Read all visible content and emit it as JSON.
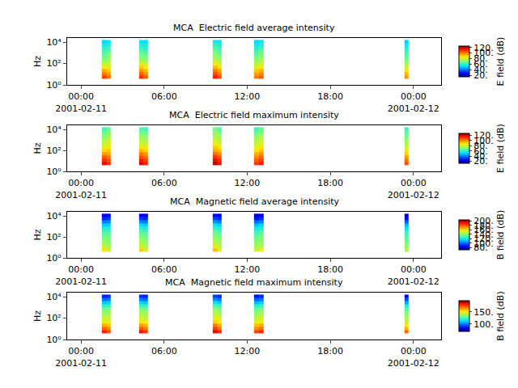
{
  "chart_data": [
    {
      "type": "heatmap",
      "title": "MCA  Electric field average intensity",
      "ylabel": "Hz",
      "log": "y",
      "x": [
        "2001-02-11 01:30",
        "2001-02-11 01:50",
        "2001-02-11 02:10",
        "2001-02-11 04:10",
        "2001-02-11 04:30",
        "2001-02-11 04:50",
        "2001-02-11 09:30",
        "2001-02-11 09:50",
        "2001-02-11 10:10",
        "2001-02-11 12:30",
        "2001-02-11 12:50",
        "2001-02-11 13:10",
        "2001-02-11 23:20",
        "2001-02-11 23:30",
        "2001-02-11 23:40"
      ],
      "y": [
        4,
        8,
        16,
        32,
        64,
        128,
        256,
        512,
        1024,
        2048,
        4096,
        8192,
        16384
      ],
      "z": [
        [
          108,
          102,
          null,
          110,
          104,
          null,
          112,
          106,
          null,
          100,
          104,
          null,
          98,
          96
        ],
        [
          100,
          96,
          null,
          104,
          98,
          null,
          106,
          100,
          null,
          95,
          99,
          null,
          94,
          92
        ],
        [
          94,
          90,
          null,
          97,
          92,
          null,
          100,
          95,
          null,
          90,
          93,
          null,
          88,
          86
        ],
        [
          86,
          84,
          null,
          90,
          86,
          null,
          92,
          88,
          null,
          84,
          87,
          null,
          82,
          80
        ],
        [
          78,
          80,
          null,
          82,
          79,
          null,
          85,
          81,
          null,
          77,
          80,
          null,
          76,
          74
        ],
        [
          72,
          76,
          null,
          76,
          74,
          null,
          80,
          76,
          null,
          73,
          76,
          null,
          70,
          70
        ],
        [
          68,
          72,
          null,
          70,
          70,
          null,
          74,
          71,
          null,
          69,
          72,
          null,
          66,
          67
        ],
        [
          66,
          70,
          null,
          68,
          66,
          null,
          72,
          68,
          null,
          66,
          70,
          null,
          64,
          65
        ],
        [
          63,
          66,
          null,
          64,
          63,
          null,
          68,
          64,
          null,
          62,
          66,
          null,
          60,
          62
        ],
        [
          60,
          62,
          null,
          61,
          60,
          null,
          64,
          61,
          null,
          59,
          62,
          null,
          57,
          58
        ],
        [
          56,
          58,
          null,
          58,
          56,
          null,
          60,
          57,
          null,
          55,
          58,
          null,
          54,
          55
        ],
        [
          52,
          55,
          null,
          54,
          53,
          null,
          56,
          54,
          null,
          52,
          55,
          null,
          50,
          52
        ]
      ],
      "xlim": [
        "2001-02-10 23:00",
        "2001-02-12 02:00"
      ],
      "xticks": [
        {
          "value": "2001-02-11 00:00",
          "label": "00:00\n2001-02-11"
        },
        {
          "value": "2001-02-11 06:00",
          "label": "06:00"
        },
        {
          "value": "2001-02-11 12:00",
          "label": "12:00"
        },
        {
          "value": "2001-02-11 18:00",
          "label": "18:00"
        },
        {
          "value": "2001-02-12 00:00",
          "label": "00:00\n2001-02-12"
        }
      ],
      "ylim": [
        1,
        25000
      ],
      "yticks": [
        {
          "value": 1,
          "label": "10⁰"
        },
        {
          "value": 100,
          "label": "10²"
        },
        {
          "value": 10000,
          "label": "10⁴"
        }
      ],
      "colorbar_label": "E field (dB)",
      "zlim": [
        15,
        125
      ],
      "zticks": [
        {
          "value": 20,
          "label": "20."
        },
        {
          "value": 40,
          "label": "40."
        },
        {
          "value": 60,
          "label": "60."
        },
        {
          "value": 80,
          "label": "80."
        },
        {
          "value": 100,
          "label": "100."
        },
        {
          "value": 120,
          "label": "120."
        }
      ]
    },
    {
      "type": "heatmap",
      "title": "MCA  Electric field maximum intensity",
      "ylabel": "Hz",
      "log": "y",
      "x": [
        "2001-02-11 01:30",
        "2001-02-11 01:50",
        "2001-02-11 02:10",
        "2001-02-11 04:10",
        "2001-02-11 04:30",
        "2001-02-11 04:50",
        "2001-02-11 09:30",
        "2001-02-11 09:50",
        "2001-02-11 10:10",
        "2001-02-11 12:30",
        "2001-02-11 12:50",
        "2001-02-11 13:10",
        "2001-02-11 23:20",
        "2001-02-11 23:30",
        "2001-02-11 23:40"
      ],
      "y": [
        4,
        8,
        16,
        32,
        64,
        128,
        256,
        512,
        1024,
        2048,
        4096,
        8192,
        16384
      ],
      "z": [
        [
          118,
          112,
          null,
          120,
          114,
          null,
          122,
          116,
          null,
          110,
          114,
          null,
          108,
          106
        ],
        [
          112,
          108,
          null,
          115,
          110,
          null,
          118,
          112,
          null,
          106,
          110,
          null,
          104,
          102
        ],
        [
          106,
          102,
          null,
          108,
          104,
          null,
          112,
          106,
          null,
          100,
          104,
          null,
          98,
          96
        ],
        [
          98,
          96,
          null,
          102,
          98,
          null,
          104,
          100,
          null,
          95,
          99,
          null,
          92,
          90
        ],
        [
          90,
          92,
          null,
          94,
          90,
          null,
          96,
          92,
          null,
          88,
          92,
          null,
          86,
          84
        ],
        [
          84,
          88,
          null,
          88,
          85,
          null,
          92,
          88,
          null,
          84,
          88,
          null,
          80,
          80
        ],
        [
          80,
          84,
          null,
          82,
          80,
          null,
          86,
          82,
          null,
          80,
          84,
          null,
          76,
          77
        ],
        [
          78,
          82,
          null,
          80,
          78,
          null,
          84,
          80,
          null,
          78,
          82,
          null,
          74,
          75
        ],
        [
          74,
          78,
          null,
          76,
          74,
          null,
          80,
          76,
          null,
          74,
          78,
          null,
          70,
          72
        ],
        [
          70,
          74,
          null,
          72,
          70,
          null,
          76,
          72,
          null,
          70,
          74,
          null,
          67,
          68
        ],
        [
          66,
          70,
          null,
          68,
          66,
          null,
          72,
          68,
          null,
          66,
          70,
          null,
          64,
          65
        ],
        [
          62,
          66,
          null,
          64,
          62,
          null,
          68,
          64,
          null,
          62,
          66,
          null,
          60,
          62
        ]
      ],
      "xlim": [
        "2001-02-10 23:00",
        "2001-02-12 02:00"
      ],
      "xticks": [
        {
          "value": "2001-02-11 00:00",
          "label": "00:00\n2001-02-11"
        },
        {
          "value": "2001-02-11 06:00",
          "label": "06:00"
        },
        {
          "value": "2001-02-11 12:00",
          "label": "12:00"
        },
        {
          "value": "2001-02-11 18:00",
          "label": "18:00"
        },
        {
          "value": "2001-02-12 00:00",
          "label": "00:00\n2001-02-12"
        }
      ],
      "ylim": [
        1,
        25000
      ],
      "yticks": [
        {
          "value": 1,
          "label": "10⁰"
        },
        {
          "value": 100,
          "label": "10²"
        },
        {
          "value": 10000,
          "label": "10⁴"
        }
      ],
      "colorbar_label": "E field (dB)",
      "zlim": [
        12,
        128
      ],
      "zticks": [
        {
          "value": 20,
          "label": "20."
        },
        {
          "value": 40,
          "label": "40."
        },
        {
          "value": 60,
          "label": "60."
        },
        {
          "value": 80,
          "label": "80."
        },
        {
          "value": 100,
          "label": "100."
        },
        {
          "value": 120,
          "label": "120."
        }
      ]
    },
    {
      "type": "heatmap",
      "title": "MCA  Magnetic field average intensity",
      "ylabel": "Hz",
      "log": "y",
      "x": [
        "2001-02-11 01:30",
        "2001-02-11 01:50",
        "2001-02-11 02:10",
        "2001-02-11 04:10",
        "2001-02-11 04:30",
        "2001-02-11 04:50",
        "2001-02-11 09:30",
        "2001-02-11 09:50",
        "2001-02-11 10:10",
        "2001-02-11 12:30",
        "2001-02-11 12:50",
        "2001-02-11 13:10",
        "2001-02-11 23:20",
        "2001-02-11 23:30",
        "2001-02-11 23:40"
      ],
      "y": [
        4,
        8,
        16,
        32,
        64,
        128,
        256,
        512,
        1024,
        2048,
        4096,
        8192,
        16384
      ],
      "z": [
        [
          158,
          150,
          null,
          162,
          152,
          null,
          165,
          155,
          null,
          150,
          156,
          null,
          148,
          146
        ],
        [
          150,
          144,
          null,
          152,
          146,
          null,
          155,
          148,
          null,
          144,
          148,
          null,
          142,
          140
        ],
        [
          144,
          140,
          null,
          146,
          142,
          null,
          148,
          143,
          null,
          140,
          143,
          null,
          138,
          136
        ],
        [
          140,
          138,
          null,
          142,
          139,
          null,
          144,
          140,
          null,
          137,
          140,
          null,
          135,
          134
        ],
        [
          136,
          135,
          null,
          138,
          136,
          null,
          140,
          137,
          null,
          134,
          137,
          null,
          132,
          131
        ],
        [
          132,
          132,
          null,
          134,
          132,
          null,
          136,
          133,
          null,
          130,
          133,
          null,
          128,
          128
        ],
        [
          128,
          128,
          null,
          130,
          128,
          null,
          132,
          129,
          null,
          126,
          129,
          null,
          124,
          124
        ],
        [
          122,
          123,
          null,
          124,
          122,
          null,
          126,
          123,
          null,
          120,
          123,
          null,
          118,
          118
        ],
        [
          114,
          115,
          null,
          116,
          114,
          null,
          118,
          115,
          null,
          112,
          115,
          null,
          110,
          110
        ],
        [
          102,
          104,
          null,
          104,
          102,
          null,
          106,
          103,
          null,
          100,
          103,
          null,
          98,
          98
        ],
        [
          90,
          92,
          null,
          92,
          90,
          null,
          94,
          91,
          null,
          88,
          91,
          null,
          86,
          86
        ],
        [
          82,
          84,
          null,
          84,
          82,
          null,
          86,
          83,
          null,
          80,
          83,
          null,
          78,
          78
        ]
      ],
      "xlim": [
        "2001-02-10 23:00",
        "2001-02-12 02:00"
      ],
      "xticks": [
        {
          "value": "2001-02-11 00:00",
          "label": "00:00\n2001-02-11"
        },
        {
          "value": "2001-02-11 06:00",
          "label": "06:00"
        },
        {
          "value": "2001-02-11 12:00",
          "label": "12:00"
        },
        {
          "value": "2001-02-11 18:00",
          "label": "18:00"
        },
        {
          "value": "2001-02-12 00:00",
          "label": "00:00\n2001-02-12"
        }
      ],
      "ylim": [
        1,
        25000
      ],
      "yticks": [
        {
          "value": 1,
          "label": "10⁰"
        },
        {
          "value": 100,
          "label": "10²"
        },
        {
          "value": 10000,
          "label": "10⁴"
        }
      ],
      "colorbar_label": "B field (dB)",
      "zlim": [
        70,
        205
      ],
      "zticks": [
        {
          "value": 80,
          "label": "80."
        },
        {
          "value": 100,
          "label": "100."
        },
        {
          "value": 120,
          "label": "120."
        },
        {
          "value": 140,
          "label": "140."
        },
        {
          "value": 160,
          "label": "160."
        },
        {
          "value": 180,
          "label": "180."
        },
        {
          "value": 200,
          "label": "200."
        }
      ]
    },
    {
      "type": "heatmap",
      "title": "MCA  Magnetic field maximum intensity",
      "ylabel": "Hz",
      "log": "y",
      "x": [
        "2001-02-11 01:30",
        "2001-02-11 01:50",
        "2001-02-11 02:10",
        "2001-02-11 04:10",
        "2001-02-11 04:30",
        "2001-02-11 04:50",
        "2001-02-11 09:30",
        "2001-02-11 09:50",
        "2001-02-11 10:10",
        "2001-02-11 12:30",
        "2001-02-11 12:50",
        "2001-02-11 13:10",
        "2001-02-11 23:20",
        "2001-02-11 23:30",
        "2001-02-11 23:40"
      ],
      "y": [
        4,
        8,
        16,
        32,
        64,
        128,
        256,
        512,
        1024,
        2048,
        4096,
        8192,
        16384
      ],
      "z": [
        [
          180,
          172,
          null,
          182,
          176,
          null,
          185,
          178,
          null,
          174,
          178,
          null,
          170,
          168
        ],
        [
          170,
          164,
          null,
          172,
          166,
          null,
          176,
          168,
          null,
          164,
          168,
          null,
          160,
          158
        ],
        [
          160,
          156,
          null,
          162,
          158,
          null,
          166,
          160,
          null,
          156,
          160,
          null,
          152,
          150
        ],
        [
          150,
          148,
          null,
          152,
          150,
          null,
          155,
          151,
          null,
          147,
          150,
          null,
          144,
          142
        ],
        [
          144,
          143,
          null,
          146,
          144,
          null,
          148,
          145,
          null,
          142,
          145,
          null,
          140,
          138
        ],
        [
          140,
          140,
          null,
          142,
          140,
          null,
          144,
          141,
          null,
          138,
          141,
          null,
          136,
          135
        ],
        [
          136,
          136,
          null,
          138,
          136,
          null,
          140,
          137,
          null,
          134,
          137,
          null,
          132,
          131
        ],
        [
          130,
          131,
          null,
          132,
          130,
          null,
          134,
          131,
          null,
          128,
          131,
          null,
          126,
          126
        ],
        [
          122,
          123,
          null,
          124,
          122,
          null,
          126,
          123,
          null,
          120,
          123,
          null,
          118,
          118
        ],
        [
          110,
          112,
          null,
          112,
          110,
          null,
          114,
          111,
          null,
          108,
          111,
          null,
          106,
          106
        ],
        [
          98,
          100,
          null,
          100,
          98,
          null,
          102,
          99,
          null,
          96,
          99,
          null,
          94,
          94
        ],
        [
          88,
          90,
          null,
          90,
          88,
          null,
          92,
          89,
          null,
          86,
          89,
          null,
          84,
          84
        ]
      ],
      "xlim": [
        "2001-02-10 23:00",
        "2001-02-12 02:00"
      ],
      "xticks": [
        {
          "value": "2001-02-11 00:00",
          "label": "00:00\n2001-02-11"
        },
        {
          "value": "2001-02-11 06:00",
          "label": "06:00"
        },
        {
          "value": "2001-02-11 12:00",
          "label": "12:00"
        },
        {
          "value": "2001-02-11 18:00",
          "label": "18:00"
        },
        {
          "value": "2001-02-12 00:00",
          "label": "00:00\n2001-02-12"
        }
      ],
      "ylim": [
        1,
        25000
      ],
      "yticks": [
        {
          "value": 1,
          "label": "10⁰"
        },
        {
          "value": 100,
          "label": "10²"
        },
        {
          "value": 10000,
          "label": "10⁴"
        }
      ],
      "colorbar_label": "B field (dB)",
      "zlim": [
        70,
        195
      ],
      "zticks": [
        {
          "value": 100,
          "label": "100."
        },
        {
          "value": 150,
          "label": "150."
        }
      ]
    }
  ]
}
